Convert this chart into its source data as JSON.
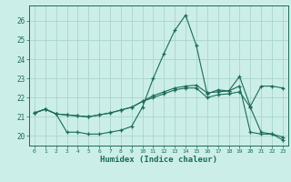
{
  "title": "",
  "xlabel": "Humidex (Indice chaleur)",
  "bg_color": "#cceee8",
  "grid_color": "#aad4ce",
  "line_color": "#1a6b5a",
  "xlim": [
    -0.5,
    23.5
  ],
  "ylim": [
    19.5,
    26.8
  ],
  "xticks": [
    0,
    1,
    2,
    3,
    4,
    5,
    6,
    7,
    8,
    9,
    10,
    11,
    12,
    13,
    14,
    15,
    16,
    17,
    18,
    19,
    20,
    21,
    22,
    23
  ],
  "yticks": [
    20,
    21,
    22,
    23,
    24,
    25,
    26
  ],
  "line1_x": [
    0,
    1,
    2,
    3,
    4,
    5,
    6,
    7,
    8,
    9,
    10,
    11,
    12,
    13,
    14,
    15,
    16,
    17,
    18,
    19,
    20,
    21,
    22,
    23
  ],
  "line1_y": [
    21.2,
    21.4,
    21.15,
    20.2,
    20.2,
    20.1,
    20.1,
    20.2,
    20.3,
    20.5,
    21.5,
    23.0,
    24.3,
    25.5,
    26.3,
    24.7,
    22.2,
    22.4,
    22.35,
    22.6,
    20.2,
    20.1,
    20.1,
    19.8
  ],
  "line2_x": [
    0,
    1,
    2,
    3,
    4,
    5,
    6,
    7,
    8,
    9,
    10,
    11,
    12,
    13,
    14,
    15,
    16,
    17,
    18,
    19,
    20,
    21,
    22,
    23
  ],
  "line2_y": [
    21.2,
    21.4,
    21.15,
    21.1,
    21.05,
    21.0,
    21.1,
    21.2,
    21.35,
    21.5,
    21.8,
    22.1,
    22.3,
    22.5,
    22.6,
    22.65,
    22.25,
    22.3,
    22.35,
    23.1,
    21.55,
    22.6,
    22.6,
    22.5
  ],
  "line3_x": [
    0,
    1,
    2,
    3,
    4,
    5,
    6,
    7,
    8,
    9,
    10,
    11,
    12,
    13,
    14,
    15,
    16,
    17,
    18,
    19,
    20,
    21,
    22,
    23
  ],
  "line3_y": [
    21.2,
    21.4,
    21.15,
    21.1,
    21.05,
    21.0,
    21.1,
    21.2,
    21.35,
    21.5,
    21.8,
    22.0,
    22.2,
    22.4,
    22.5,
    22.5,
    22.0,
    22.15,
    22.2,
    22.3,
    21.5,
    20.2,
    20.1,
    19.95
  ]
}
